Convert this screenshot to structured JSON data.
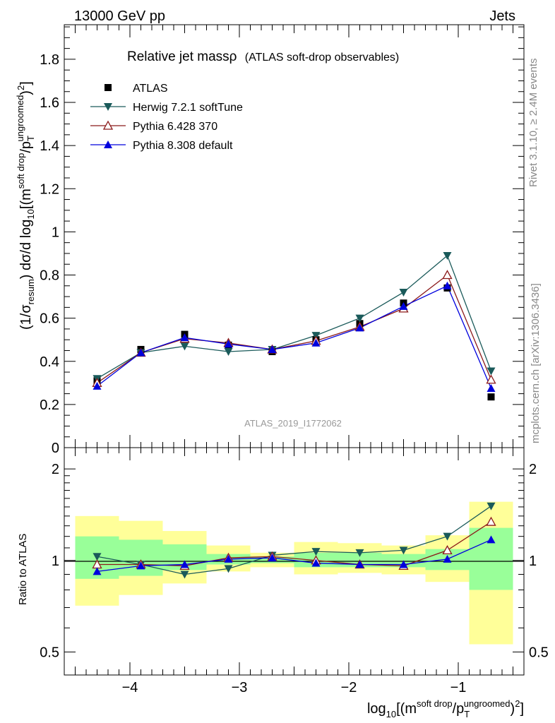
{
  "header": {
    "left": "13000 GeV pp",
    "right": "Jets"
  },
  "main": {
    "title": "Relative jet massρ",
    "subtitle": "(ATLAS soft-drop observables)",
    "watermark": "ATLAS_2019_I1772062"
  },
  "side_labels": {
    "rivet": "Rivet 3.1.10, ≥ 2.4M events",
    "mcplots": "mcplots.cern.ch [arXiv:1306.3436]"
  },
  "axes": {
    "ylabel_main": "(1/σresum) dσ/d log10[(m soft drop/pT ungroomed)2]",
    "ylabel_ratio": "Ratio to ATLAS",
    "xlabel": "log10[(m soft drop/pT ungroomed)2]",
    "xlabel_parts": {
      "a": "log",
      "b": "10",
      "c": "[(m",
      "d": "soft drop",
      "e": "/p",
      "f": "T",
      "g": "ungroomed",
      "h": ")",
      "i": "2",
      "j": "]"
    },
    "ylabel_main_parts": {
      "a": "(1/σ",
      "b": "resum",
      "c": ") dσ/d log",
      "d": "10",
      "e": "[(m",
      "f": "soft drop",
      "g": "/p",
      "h": "T",
      "i": "ungroomed",
      "j": ")",
      "k": "2",
      "l": "]"
    }
  },
  "chart_data": [
    {
      "type": "scatter",
      "panel": "main",
      "x": [
        -4.3,
        -3.9,
        -3.5,
        -3.1,
        -2.7,
        -2.3,
        -1.9,
        -1.5,
        -1.1,
        -0.7
      ],
      "xlim": [
        -4.6,
        -0.4
      ],
      "ylim": [
        0,
        1.96
      ],
      "yticks": [
        0,
        0.2,
        0.4,
        0.6,
        0.8,
        1,
        1.2,
        1.4,
        1.6,
        1.8
      ],
      "ytick_labels": [
        "0",
        "0.2",
        "0.4",
        "0.6",
        "0.8",
        "1",
        "1.2",
        "1.4",
        "1.6",
        "1.8"
      ],
      "series": [
        {
          "name": "ATLAS",
          "marker": "square",
          "color": "#000000",
          "values": [
            0.31,
            0.455,
            0.525,
            0.475,
            0.445,
            0.5,
            0.575,
            0.67,
            0.74,
            0.235
          ]
        },
        {
          "name": "Herwig 7.2.1 softTune",
          "marker": "triangle-down",
          "color": "#1a5a5a",
          "values": [
            0.32,
            0.44,
            0.47,
            0.445,
            0.455,
            0.52,
            0.6,
            0.72,
            0.89,
            0.355
          ]
        },
        {
          "name": "Pythia 6.428 370",
          "marker": "triangle-up-open",
          "color": "#8b1a1a",
          "values": [
            0.3,
            0.44,
            0.505,
            0.485,
            0.455,
            0.495,
            0.56,
            0.645,
            0.8,
            0.315
          ]
        },
        {
          "name": "Pythia 8.308 default",
          "marker": "triangle-up",
          "color": "#0000dd",
          "values": [
            0.285,
            0.44,
            0.51,
            0.48,
            0.455,
            0.485,
            0.555,
            0.655,
            0.75,
            0.275
          ]
        }
      ],
      "legend": "top-left"
    },
    {
      "type": "line",
      "panel": "ratio",
      "scale": "log",
      "x": [
        -4.3,
        -3.9,
        -3.5,
        -3.1,
        -2.7,
        -2.3,
        -1.9,
        -1.5,
        -1.1,
        -0.7
      ],
      "bin_edges": [
        -4.5,
        -4.1,
        -3.7,
        -3.3,
        -2.9,
        -2.5,
        -2.1,
        -1.7,
        -1.3,
        -0.9,
        -0.5
      ],
      "xlim": [
        -4.6,
        -0.4
      ],
      "xticks": [
        -4,
        -3,
        -2,
        -1
      ],
      "xtick_labels": [
        "−4",
        "−3",
        "−2",
        "−1"
      ],
      "ylim": [
        0.42,
        2.35
      ],
      "yticks": [
        0.5,
        1,
        2
      ],
      "ytick_labels": [
        "0.5",
        "1",
        "2"
      ],
      "band_outer": {
        "color": "#ffff99",
        "low": [
          0.71,
          0.77,
          0.84,
          0.92,
          0.95,
          0.9,
          0.91,
          0.9,
          0.85,
          0.53
        ],
        "high": [
          1.4,
          1.35,
          1.25,
          1.12,
          1.06,
          1.15,
          1.14,
          1.12,
          1.21,
          1.56
        ]
      },
      "band_inner": {
        "color": "#99ff99",
        "low": [
          0.87,
          0.89,
          0.93,
          0.97,
          0.98,
          0.95,
          0.95,
          0.95,
          0.93,
          0.8
        ],
        "high": [
          1.2,
          1.17,
          1.13,
          1.05,
          1.03,
          1.06,
          1.06,
          1.05,
          1.09,
          1.28
        ]
      },
      "series": [
        {
          "name": "Herwig 7.2.1 softTune",
          "marker": "triangle-down",
          "color": "#1a5a5a",
          "values": [
            1.03,
            0.97,
            0.9,
            0.94,
            1.04,
            1.07,
            1.06,
            1.08,
            1.2,
            1.51
          ]
        },
        {
          "name": "Pythia 6.428 370",
          "marker": "triangle-up-open",
          "color": "#8b1a1a",
          "values": [
            0.97,
            0.97,
            0.96,
            1.02,
            1.03,
            1.0,
            0.97,
            0.96,
            1.08,
            1.34
          ]
        },
        {
          "name": "Pythia 8.308 default",
          "marker": "triangle-up",
          "color": "#0000dd",
          "values": [
            0.92,
            0.96,
            0.97,
            1.01,
            1.02,
            0.98,
            0.97,
            0.97,
            1.01,
            1.17
          ]
        }
      ]
    }
  ]
}
